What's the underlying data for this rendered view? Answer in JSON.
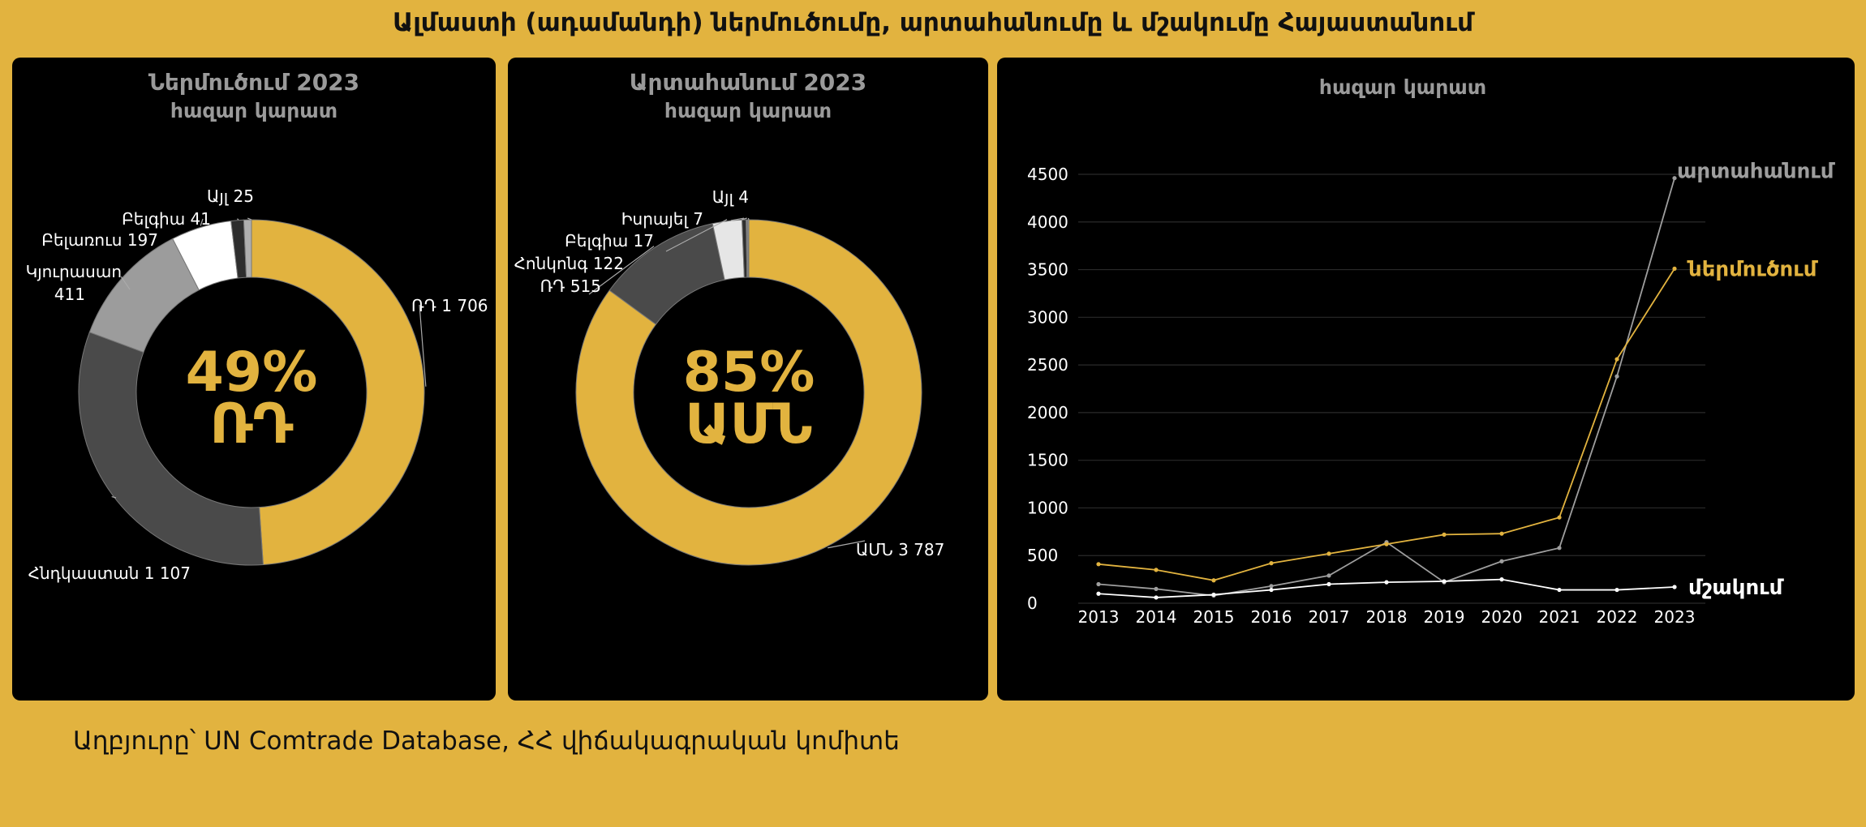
{
  "title": "Ալմաստի (ադամանդի) ներմուծումը, արտահանումը և մշակումը Հայաստանում",
  "source": "Աղբյուրը՝ UN Comtrade Database, ՀՀ վիճակագրական կոմիտե",
  "colors": {
    "background": "#e2b33f",
    "panel": "#000000",
    "accent": "#e2b33f",
    "import_line": "#e2b33f",
    "export_line": "#9e9e9e",
    "processing_line": "#ffffff"
  },
  "chart_data": [
    {
      "type": "pie",
      "donut": true,
      "title": "Ներմուծում 2023",
      "subtitle": "հազար կարատ",
      "center_label": [
        "49%",
        "ՌԴ"
      ],
      "slices": [
        {
          "label": "ՌԴ 1 706",
          "value": 1706,
          "color": "#e2b33f"
        },
        {
          "label": "Հնդկաստան 1 107",
          "value": 1107,
          "color": "#4a4a4a"
        },
        {
          "label": "Կյուրասաո 411",
          "value": 411,
          "color": "#9c9c9c"
        },
        {
          "label": "Բելառուս 197",
          "value": 197,
          "color": "#ffffff"
        },
        {
          "label": "Բելգիա 41",
          "value": 41,
          "color": "#2e2e2e"
        },
        {
          "label": "Այլ 25",
          "value": 25,
          "color": "#b0b0b0"
        }
      ]
    },
    {
      "type": "pie",
      "donut": true,
      "title": "Արտահանում 2023",
      "subtitle": "հազար կարատ",
      "center_label": [
        "85%",
        "ԱՄՆ"
      ],
      "slices": [
        {
          "label": "ԱՄՆ 3 787",
          "value": 3787,
          "color": "#e2b33f"
        },
        {
          "label": "ՌԴ 515",
          "value": 515,
          "color": "#4a4a4a"
        },
        {
          "label": "Հոնկոնգ 122",
          "value": 122,
          "color": "#e6e6e6"
        },
        {
          "label": "Բելգիա 17",
          "value": 17,
          "color": "#2e2e2e"
        },
        {
          "label": "Իսրայել 7",
          "value": 7,
          "color": "#8c8c8c"
        },
        {
          "label": "Այլ 4",
          "value": 4,
          "color": "#cfcfcf"
        }
      ]
    },
    {
      "type": "line",
      "title": "հազար կարատ",
      "x": [
        2013,
        2014,
        2015,
        2016,
        2017,
        2018,
        2019,
        2020,
        2021,
        2022,
        2023
      ],
      "series": [
        {
          "name": "արտահանում",
          "color": "#9e9e9e",
          "values": [
            200,
            150,
            80,
            180,
            290,
            640,
            220,
            440,
            580,
            2380,
            4460
          ]
        },
        {
          "name": "ներմուծում",
          "color": "#e2b33f",
          "values": [
            410,
            350,
            240,
            420,
            520,
            620,
            720,
            730,
            900,
            2560,
            3510
          ]
        },
        {
          "name": "մշակում",
          "color": "#ffffff",
          "values": [
            100,
            60,
            90,
            140,
            200,
            220,
            230,
            250,
            140,
            140,
            170
          ]
        }
      ],
      "ylim": [
        0,
        4500
      ],
      "yticks": [
        0,
        500,
        1000,
        1500,
        2000,
        2500,
        3000,
        3500,
        4000,
        4500
      ],
      "grid": true
    }
  ]
}
